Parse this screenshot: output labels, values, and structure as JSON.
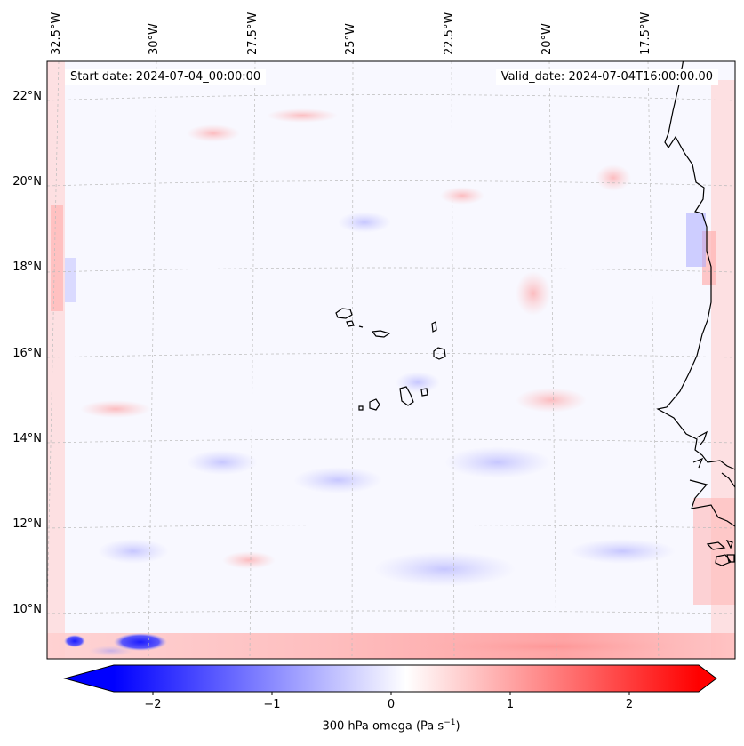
{
  "map": {
    "start_date": "Start date: 2024-07-04_00:00:00",
    "valid_date": "Valid_date: 2024-07-04T16:00:00.00",
    "lon_labels": [
      "32.5°W",
      "30°W",
      "27.5°W",
      "25°W",
      "22.5°W",
      "20°W",
      "17.5°W"
    ],
    "lat_labels": [
      "22°N",
      "20°N",
      "18°N",
      "16°N",
      "14°N",
      "12°N",
      "10°N"
    ],
    "variable": "300 hPa omega",
    "units": "Pa s",
    "units_exponent": "−1"
  },
  "colorbar": {
    "ticks": [
      "−2",
      "−1",
      "0",
      "1",
      "2"
    ],
    "min_color": "#0000ff",
    "mid_color": "#ffffff",
    "max_color": "#ff0000"
  }
}
